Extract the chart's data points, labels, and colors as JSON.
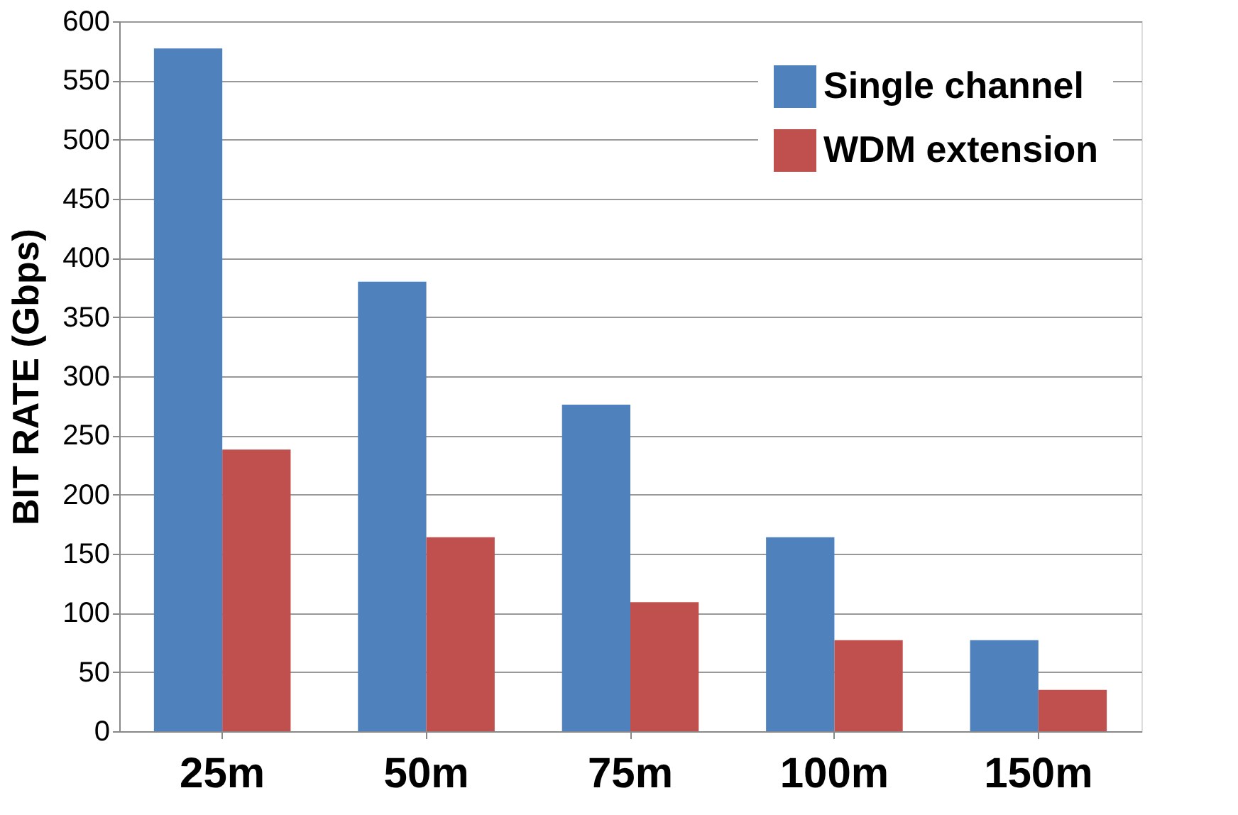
{
  "chart_data": {
    "type": "bar",
    "ylabel": "BIT RATE (Gbps)",
    "categories": [
      "25m",
      "50m",
      "75m",
      "100m",
      "150m"
    ],
    "series": [
      {
        "name": "Single channel",
        "color": "#4f81bd",
        "values": [
          577,
          380,
          276,
          164,
          77
        ]
      },
      {
        "name": "WDM extension",
        "color": "#c0504d",
        "values": [
          238,
          164,
          109,
          77,
          35
        ]
      }
    ],
    "ylim": [
      0,
      600
    ],
    "yticks": [
      0,
      50,
      100,
      150,
      200,
      250,
      300,
      350,
      400,
      450,
      500,
      550,
      600
    ],
    "grid": "y",
    "legend": "top right"
  }
}
